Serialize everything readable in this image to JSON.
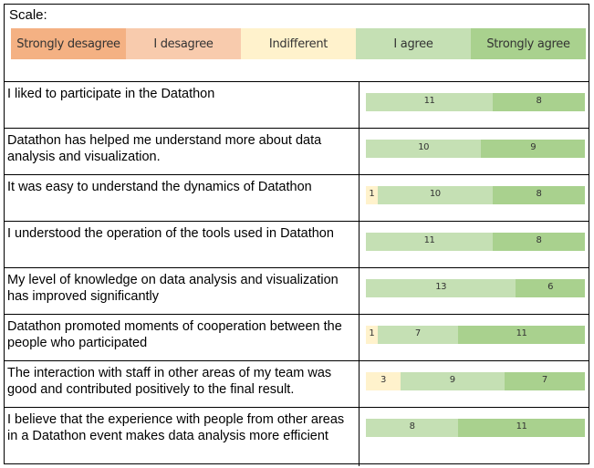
{
  "scale": {
    "title": "Scale:",
    "levels": [
      {
        "label": "Strongly desagree",
        "color": "#f4b183"
      },
      {
        "label": "I desagree",
        "color": "#f8cbad"
      },
      {
        "label": "Indifferent",
        "color": "#fff2cc"
      },
      {
        "label": "I agree",
        "color": "#c5e0b4"
      },
      {
        "label": "Strongly agree",
        "color": "#a9d18e"
      }
    ]
  },
  "chart_data": {
    "type": "bar",
    "orientation": "horizontal-stacked",
    "series_order": [
      "Strongly desagree",
      "I desagree",
      "Indifferent",
      "I agree",
      "Strongly agree"
    ],
    "rows": [
      {
        "question": "I liked to participate in the Datathon",
        "values": [
          0,
          0,
          0,
          11,
          8
        ],
        "labels": [
          "0",
          "",
          "",
          "11",
          "8"
        ]
      },
      {
        "question": "Datathon has helped me understand more about data analysis and visualization.",
        "values": [
          0,
          0,
          0,
          10,
          9
        ],
        "labels": [
          "0",
          "",
          "",
          "10",
          "9"
        ]
      },
      {
        "question": "It was easy to understand the dynamics of Datathon",
        "values": [
          0,
          0,
          1,
          10,
          8
        ],
        "labels": [
          "0",
          "",
          "1",
          "10",
          "8"
        ]
      },
      {
        "question": "I understood the operation of the tools used in Datathon",
        "values": [
          0,
          0,
          0,
          11,
          8
        ],
        "labels": [
          "0",
          "",
          "",
          "11",
          "8"
        ]
      },
      {
        "question": "My level of knowledge on data analysis and visualization has improved significantly",
        "values": [
          0,
          0,
          0,
          13,
          6
        ],
        "labels": [
          "0",
          "",
          "",
          "13",
          "6"
        ]
      },
      {
        "question": "Datathon promoted moments of cooperation between the people who participated",
        "values": [
          0,
          0,
          1,
          7,
          11
        ],
        "labels": [
          "0",
          "",
          "1",
          "7",
          "11"
        ]
      },
      {
        "question": "The interaction with staff in other areas of my team was good and contributed positively to the final result.",
        "values": [
          0,
          0,
          3,
          9,
          7
        ],
        "labels": [
          "0",
          "",
          "3",
          "9",
          "7"
        ]
      },
      {
        "question": "I believe that the experience with people from other areas in a Datathon event makes data analysis more efficient",
        "values": [
          0,
          0,
          0,
          8,
          11
        ],
        "labels": [
          "0",
          "",
          "",
          "8",
          "11"
        ]
      }
    ]
  }
}
